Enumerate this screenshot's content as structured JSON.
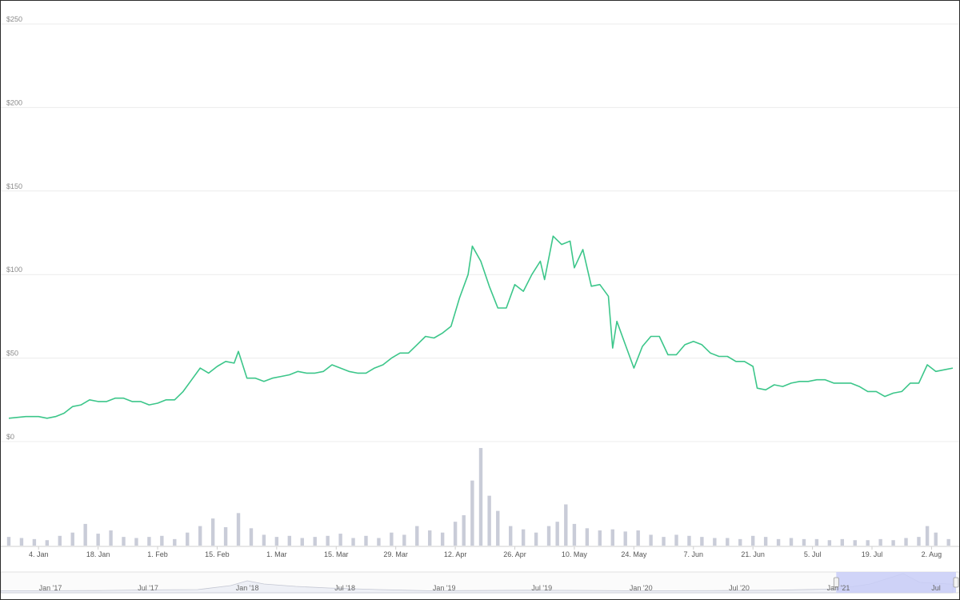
{
  "chart_data": {
    "type": "line",
    "title": "",
    "xlabel": "",
    "ylabel": "",
    "y_tick_labels": [
      "$0",
      "$50",
      "$100",
      "$150",
      "$200",
      "$250"
    ],
    "y_tick_values": [
      0,
      50,
      100,
      150,
      200,
      250
    ],
    "ylim": [
      0,
      250
    ],
    "grid": true,
    "x_tick_labels": [
      "4. Jan",
      "18. Jan",
      "1. Feb",
      "15. Feb",
      "1. Mar",
      "15. Mar",
      "29. Mar",
      "12. Apr",
      "26. Apr",
      "10. May",
      "24. May",
      "7. Jun",
      "21. Jun",
      "5. Jul",
      "19. Jul",
      "2. Aug"
    ],
    "x_tick_dates": [
      "2021-01-04",
      "2021-01-18",
      "2021-02-01",
      "2021-02-15",
      "2021-03-01",
      "2021-03-15",
      "2021-03-29",
      "2021-04-12",
      "2021-04-26",
      "2021-05-10",
      "2021-05-24",
      "2021-06-07",
      "2021-06-21",
      "2021-07-05",
      "2021-07-19",
      "2021-08-02"
    ],
    "series": [
      {
        "color": "#3cc68a",
        "x": [
          "2020-12-28",
          "2021-01-01",
          "2021-01-04",
          "2021-01-06",
          "2021-01-08",
          "2021-01-10",
          "2021-01-12",
          "2021-01-14",
          "2021-01-16",
          "2021-01-18",
          "2021-01-20",
          "2021-01-22",
          "2021-01-24",
          "2021-01-26",
          "2021-01-28",
          "2021-01-30",
          "2021-02-01",
          "2021-02-03",
          "2021-02-05",
          "2021-02-07",
          "2021-02-09",
          "2021-02-11",
          "2021-02-13",
          "2021-02-15",
          "2021-02-17",
          "2021-02-19",
          "2021-02-20",
          "2021-02-22",
          "2021-02-24",
          "2021-02-26",
          "2021-02-28",
          "2021-03-02",
          "2021-03-04",
          "2021-03-06",
          "2021-03-08",
          "2021-03-10",
          "2021-03-12",
          "2021-03-14",
          "2021-03-16",
          "2021-03-18",
          "2021-03-20",
          "2021-03-22",
          "2021-03-24",
          "2021-03-26",
          "2021-03-28",
          "2021-03-30",
          "2021-04-01",
          "2021-04-03",
          "2021-04-05",
          "2021-04-07",
          "2021-04-09",
          "2021-04-11",
          "2021-04-13",
          "2021-04-15",
          "2021-04-16",
          "2021-04-18",
          "2021-04-20",
          "2021-04-22",
          "2021-04-24",
          "2021-04-26",
          "2021-04-28",
          "2021-04-30",
          "2021-05-02",
          "2021-05-03",
          "2021-05-05",
          "2021-05-07",
          "2021-05-09",
          "2021-05-10",
          "2021-05-12",
          "2021-05-14",
          "2021-05-16",
          "2021-05-18",
          "2021-05-19",
          "2021-05-20",
          "2021-05-22",
          "2021-05-24",
          "2021-05-26",
          "2021-05-28",
          "2021-05-30",
          "2021-06-01",
          "2021-06-03",
          "2021-06-05",
          "2021-06-07",
          "2021-06-09",
          "2021-06-11",
          "2021-06-13",
          "2021-06-15",
          "2021-06-17",
          "2021-06-19",
          "2021-06-21",
          "2021-06-22",
          "2021-06-24",
          "2021-06-26",
          "2021-06-28",
          "2021-06-30",
          "2021-07-02",
          "2021-07-04",
          "2021-07-06",
          "2021-07-08",
          "2021-07-10",
          "2021-07-12",
          "2021-07-14",
          "2021-07-16",
          "2021-07-18",
          "2021-07-20",
          "2021-07-22",
          "2021-07-24",
          "2021-07-26",
          "2021-07-28",
          "2021-07-30",
          "2021-08-01",
          "2021-08-03",
          "2021-08-05",
          "2021-08-07"
        ],
        "y": [
          14,
          15,
          15,
          14,
          15,
          17,
          21,
          22,
          25,
          24,
          24,
          26,
          26,
          24,
          24,
          22,
          23,
          25,
          25,
          30,
          37,
          44,
          41,
          45,
          48,
          47,
          54,
          38,
          38,
          36,
          38,
          39,
          40,
          42,
          41,
          41,
          42,
          46,
          44,
          42,
          41,
          41,
          44,
          46,
          50,
          53,
          53,
          58,
          63,
          62,
          65,
          69,
          86,
          100,
          117,
          108,
          93,
          80,
          80,
          94,
          90,
          100,
          108,
          97,
          123,
          118,
          120,
          104,
          115,
          93,
          94,
          87,
          56,
          72,
          58,
          44,
          57,
          63,
          63,
          52,
          52,
          58,
          60,
          58,
          53,
          51,
          51,
          48,
          48,
          45,
          32,
          31,
          34,
          33,
          35,
          36,
          36,
          37,
          37,
          35,
          35,
          35,
          33,
          30,
          30,
          27,
          29,
          30,
          35,
          35,
          46,
          42,
          43,
          44
        ]
      }
    ],
    "volume": {
      "color": "#c9ccd8",
      "x": [
        "2020-12-28",
        "2020-12-31",
        "2021-01-03",
        "2021-01-06",
        "2021-01-09",
        "2021-01-12",
        "2021-01-15",
        "2021-01-18",
        "2021-01-21",
        "2021-01-24",
        "2021-01-27",
        "2021-01-30",
        "2021-02-02",
        "2021-02-05",
        "2021-02-08",
        "2021-02-11",
        "2021-02-14",
        "2021-02-17",
        "2021-02-20",
        "2021-02-23",
        "2021-02-26",
        "2021-03-01",
        "2021-03-04",
        "2021-03-07",
        "2021-03-10",
        "2021-03-13",
        "2021-03-16",
        "2021-03-19",
        "2021-03-22",
        "2021-03-25",
        "2021-03-28",
        "2021-03-31",
        "2021-04-03",
        "2021-04-06",
        "2021-04-09",
        "2021-04-12",
        "2021-04-14",
        "2021-04-16",
        "2021-04-18",
        "2021-04-20",
        "2021-04-22",
        "2021-04-25",
        "2021-04-28",
        "2021-05-01",
        "2021-05-04",
        "2021-05-06",
        "2021-05-08",
        "2021-05-10",
        "2021-05-13",
        "2021-05-16",
        "2021-05-19",
        "2021-05-22",
        "2021-05-25",
        "2021-05-28",
        "2021-05-31",
        "2021-06-03",
        "2021-06-06",
        "2021-06-09",
        "2021-06-12",
        "2021-06-15",
        "2021-06-18",
        "2021-06-21",
        "2021-06-24",
        "2021-06-27",
        "2021-06-30",
        "2021-07-03",
        "2021-07-06",
        "2021-07-09",
        "2021-07-12",
        "2021-07-15",
        "2021-07-18",
        "2021-07-21",
        "2021-07-24",
        "2021-07-27",
        "2021-07-30",
        "2021-08-01",
        "2021-08-03",
        "2021-08-06"
      ],
      "values": [
        8,
        7,
        6,
        5,
        9,
        12,
        20,
        11,
        14,
        8,
        7,
        8,
        9,
        6,
        12,
        18,
        25,
        17,
        30,
        16,
        10,
        8,
        9,
        7,
        8,
        9,
        11,
        7,
        9,
        7,
        12,
        10,
        18,
        14,
        12,
        22,
        28,
        60,
        90,
        46,
        32,
        18,
        15,
        12,
        18,
        22,
        38,
        20,
        16,
        14,
        15,
        13,
        14,
        10,
        8,
        10,
        9,
        8,
        7,
        7,
        6,
        9,
        8,
        6,
        7,
        6,
        6,
        5,
        6,
        5,
        5,
        6,
        5,
        7,
        8,
        18,
        12,
        6
      ]
    },
    "navigator": {
      "labels": [
        "Jan '17",
        "Jul '17",
        "Jan '18",
        "Jul '18",
        "Jan '19",
        "Jul '19",
        "Jan '20",
        "Jul '20",
        "Jan '21",
        "Jul"
      ],
      "label_dates": [
        "2017-01-01",
        "2017-07-01",
        "2018-01-01",
        "2018-07-01",
        "2019-01-01",
        "2019-07-01",
        "2020-01-01",
        "2020-07-01",
        "2021-01-01",
        "2021-07-01"
      ],
      "selected_range": [
        "2020-12-28",
        "2021-08-07"
      ],
      "range_color": "#c8cdf7",
      "history": {
        "x": [
          "2016-10-01",
          "2017-01-01",
          "2017-04-01",
          "2017-07-01",
          "2017-10-01",
          "2017-12-01",
          "2018-01-01",
          "2018-02-01",
          "2018-04-01",
          "2018-06-01",
          "2018-09-01",
          "2018-12-01",
          "2019-03-01",
          "2019-06-01",
          "2019-09-01",
          "2019-12-01",
          "2020-03-01",
          "2020-06-01",
          "2020-09-01",
          "2020-12-01",
          "2021-01-01",
          "2021-03-01",
          "2021-05-01",
          "2021-06-01",
          "2021-08-01"
        ],
        "y": [
          3,
          3,
          4,
          8,
          10,
          35,
          65,
          45,
          30,
          20,
          10,
          3,
          4,
          6,
          5,
          3,
          3,
          4,
          6,
          12,
          15,
          45,
          110,
          55,
          44
        ]
      }
    }
  }
}
